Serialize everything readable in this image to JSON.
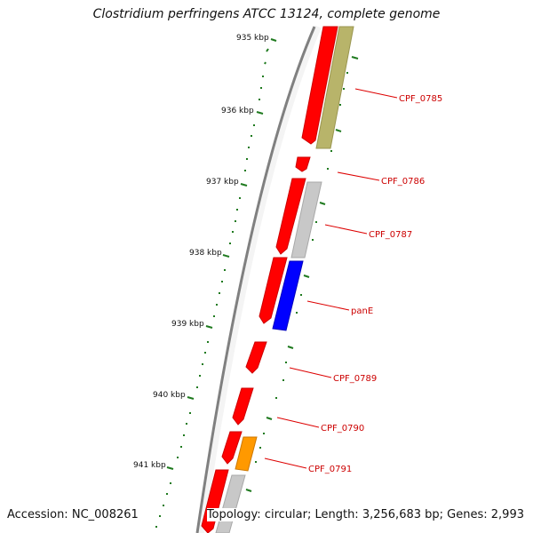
{
  "title": "Clostridium perfringens ATCC 13124, complete genome",
  "footer": {
    "accession_label": "Accession:",
    "accession": "NC_008261",
    "topology_label": "Topology:",
    "topology": "circular;",
    "length_label": "Length:",
    "length": "3,256,683 bp;",
    "genes_label": "Genes:",
    "genes": "2,993"
  },
  "colors": {
    "backbone": "#808080",
    "tick": "#1f7a1f",
    "gene_label": "#cc0000",
    "cds": "#ff0000",
    "khaki": "#b8b46a",
    "grey": "#c4c4c4",
    "blue": "#0000ff",
    "orange": "#ff9900",
    "callout": "#dd0000"
  },
  "scale_labels": [
    "935 kbp",
    "936 kbp",
    "937 kbp",
    "938 kbp",
    "939 kbp",
    "940 kbp",
    "941 kbp"
  ],
  "gene_labels": [
    "CPF_0785",
    "CPF_0786",
    "CPF_0787",
    "panE",
    "CPF_0789",
    "CPF_0790",
    "CPF_0791"
  ]
}
